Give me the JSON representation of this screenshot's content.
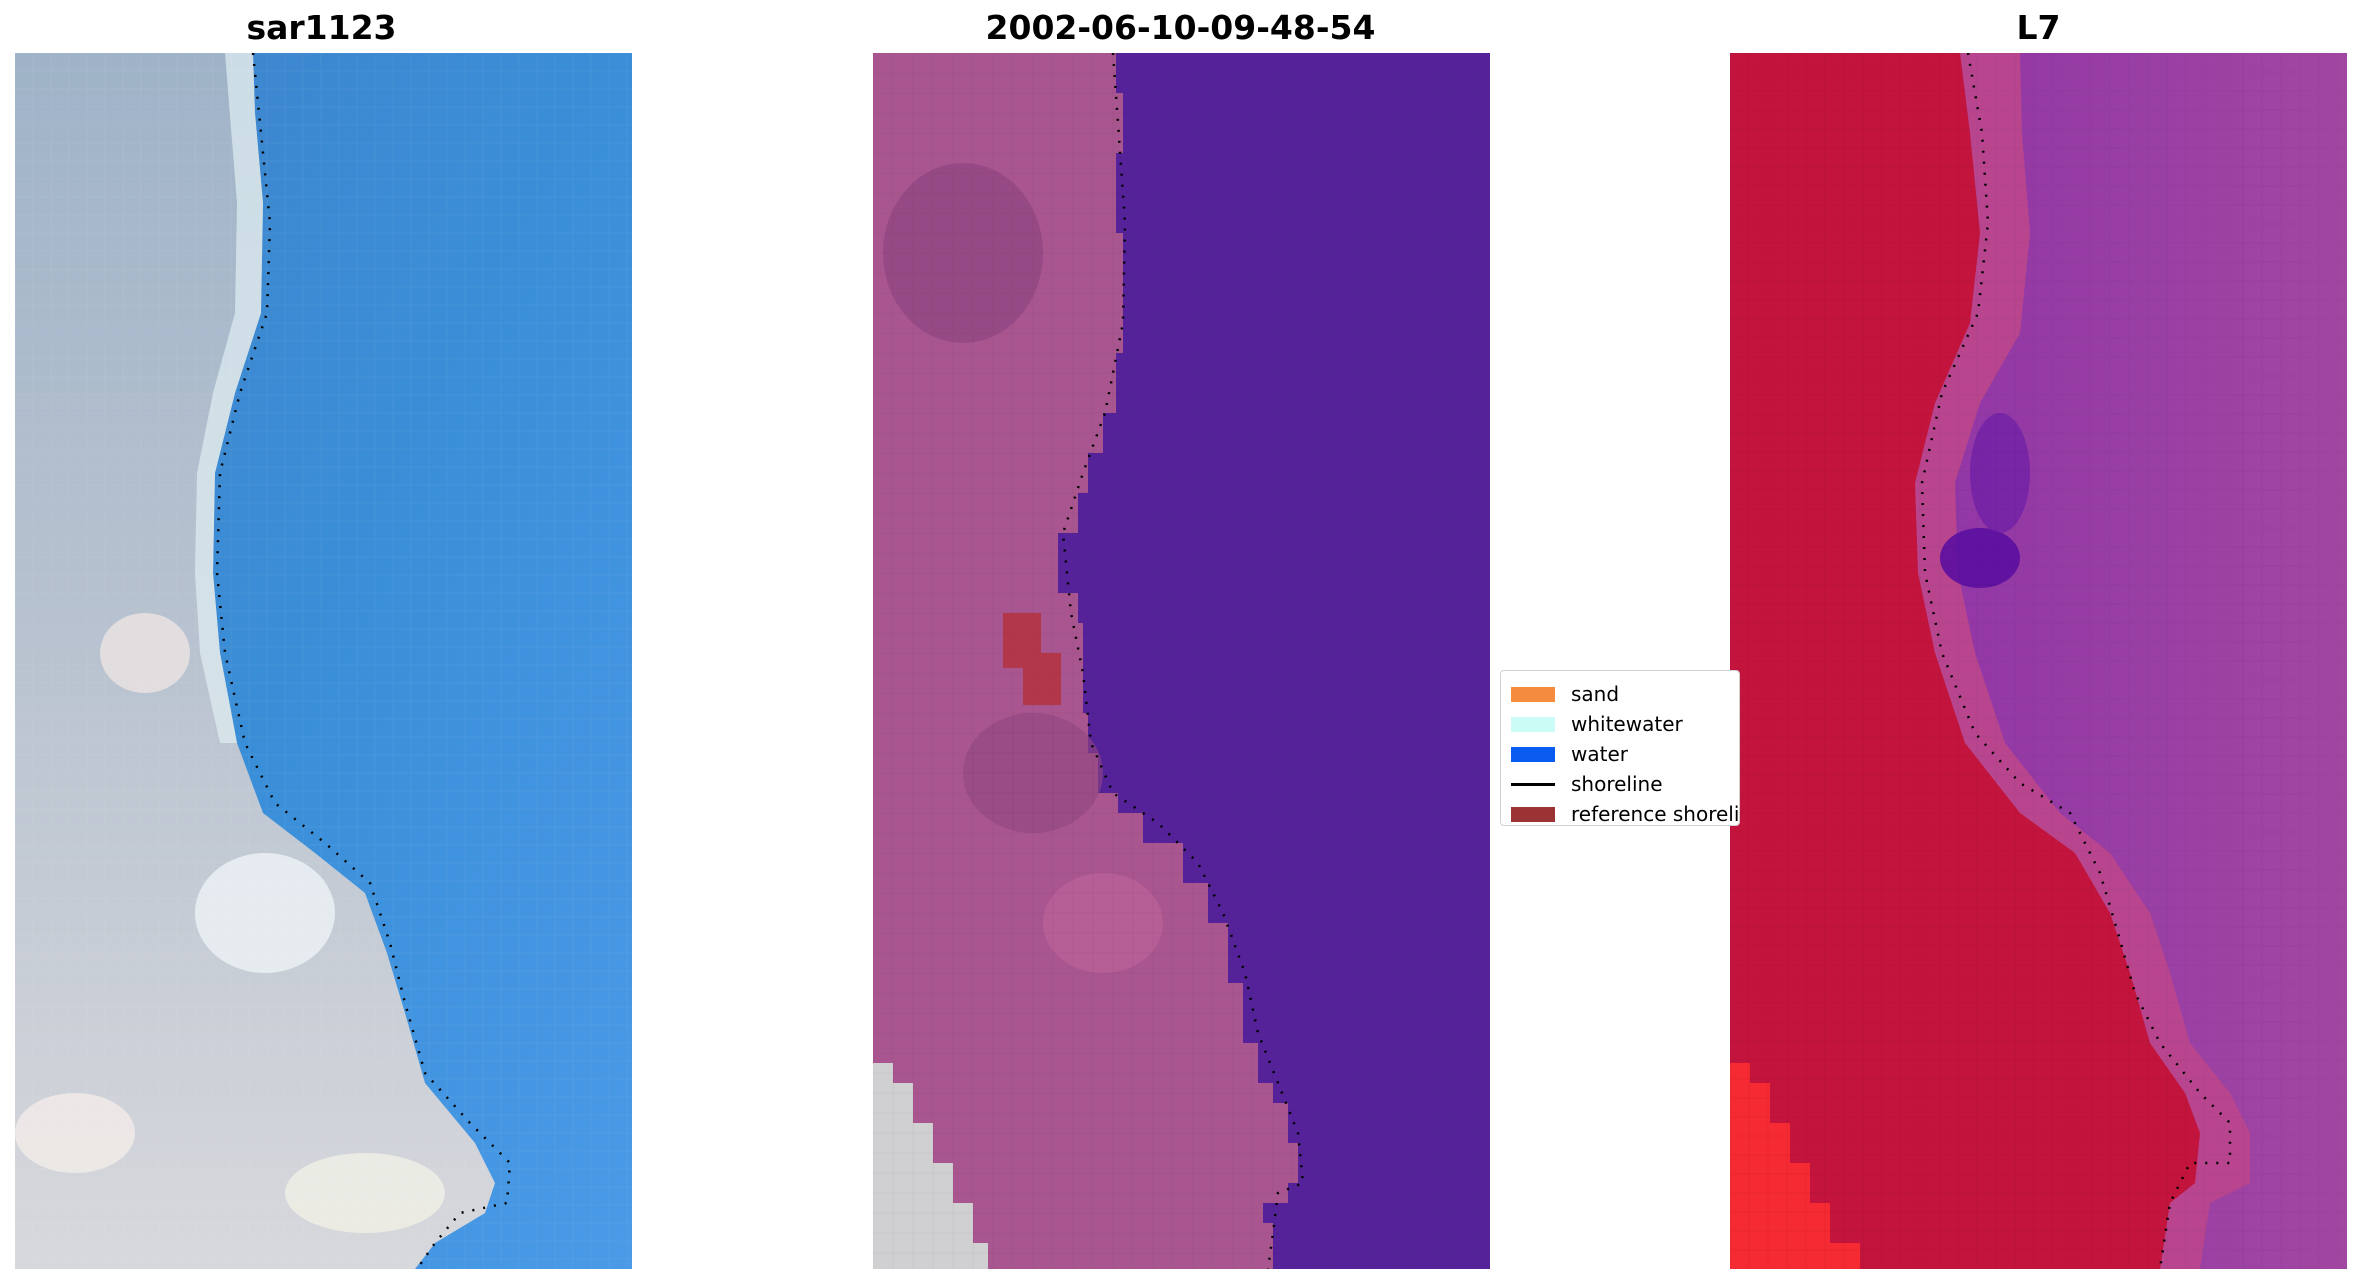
{
  "panels": [
    {
      "title": "sar1123"
    },
    {
      "title": "2002-06-10-09-48-54"
    },
    {
      "title": "L7"
    }
  ],
  "legend": {
    "items": [
      {
        "label": "sand",
        "kind": "patch",
        "color": "#f58b3f"
      },
      {
        "label": "whitewater",
        "kind": "patch",
        "color": "#ccfcf6"
      },
      {
        "label": "water",
        "kind": "patch",
        "color": "#0a5bf0"
      },
      {
        "label": "shoreline",
        "kind": "line",
        "color": "#000000"
      },
      {
        "label": "reference shoreline",
        "kind": "patch",
        "color": "#9b3335"
      }
    ]
  },
  "colors": {
    "rgb_water": "#3f8ed6",
    "rgb_land": "#c8cdd6",
    "classified_water": "#55229a",
    "classified_land": "#a9558f",
    "nir_land": "#c2143c",
    "nir_water": "#9a3ea4"
  }
}
